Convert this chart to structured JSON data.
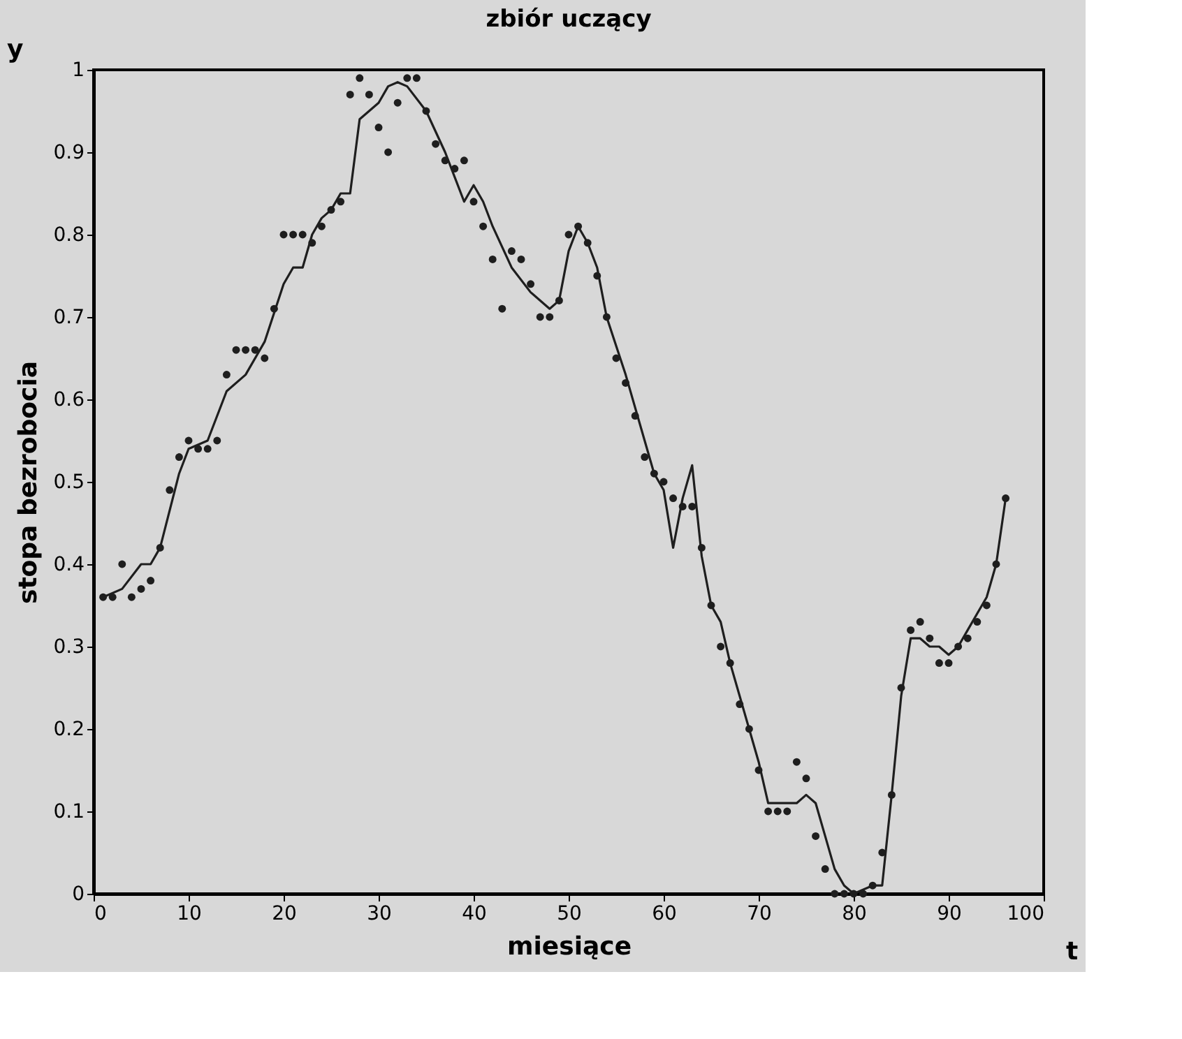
{
  "chart_data": {
    "type": "scatter",
    "title": "zbiór uczący",
    "xlabel": "miesiące",
    "ylabel": "stopa bezrobocia",
    "annotations": [
      "y",
      "t"
    ],
    "xlim": [
      0,
      100
    ],
    "xticks": [
      0,
      10,
      20,
      30,
      40,
      50,
      60,
      70,
      80,
      90,
      100
    ],
    "ylim": [
      0,
      1
    ],
    "yticks": [
      0,
      0.1,
      0.2,
      0.3,
      0.4,
      0.5,
      0.6,
      0.7,
      0.8,
      0.9,
      1
    ],
    "series": [
      {
        "marker": "circle",
        "color": "#1e1e1e",
        "x": [
          1,
          2,
          3,
          4,
          5,
          6,
          7,
          8,
          9,
          10,
          11,
          12,
          13,
          14,
          15,
          16,
          17,
          18,
          19,
          20,
          21,
          22,
          23,
          24,
          25,
          26,
          27,
          28,
          29,
          30,
          31,
          32,
          33,
          34,
          35,
          36,
          37,
          38,
          39,
          40,
          41,
          42,
          43,
          44,
          45,
          46,
          47,
          48,
          49,
          50,
          51,
          52,
          53,
          54,
          55,
          56,
          57,
          58,
          59,
          60,
          61,
          62,
          63,
          64,
          65,
          66,
          67,
          68,
          69,
          70,
          71,
          72,
          73,
          74,
          75,
          76,
          77,
          78,
          79,
          80,
          81,
          82,
          83,
          84,
          85,
          86,
          87,
          88,
          89,
          90,
          91,
          92,
          93,
          94,
          95,
          96
        ],
        "values": [
          0.36,
          0.36,
          0.4,
          0.36,
          0.37,
          0.38,
          0.42,
          0.49,
          0.53,
          0.55,
          0.54,
          0.54,
          0.55,
          0.63,
          0.66,
          0.66,
          0.66,
          0.65,
          0.71,
          0.8,
          0.8,
          0.8,
          0.79,
          0.81,
          0.83,
          0.84,
          0.97,
          0.99,
          0.97,
          0.93,
          0.9,
          0.96,
          0.99,
          0.99,
          0.95,
          0.91,
          0.89,
          0.88,
          0.89,
          0.84,
          0.81,
          0.77,
          0.71,
          0.78,
          0.77,
          0.74,
          0.7,
          0.7,
          0.72,
          0.8,
          0.81,
          0.79,
          0.75,
          0.7,
          0.65,
          0.62,
          0.58,
          0.53,
          0.51,
          0.5,
          0.48,
          0.47,
          0.47,
          0.42,
          0.35,
          0.3,
          0.28,
          0.23,
          0.2,
          0.15,
          0.1,
          0.1,
          0.1,
          0.16,
          0.14,
          0.07,
          0.03,
          0.0,
          0.0,
          0.0,
          0.0,
          0.01,
          0.05,
          0.12,
          0.25,
          0.32,
          0.33,
          0.31,
          0.28,
          0.28,
          0.3,
          0.31,
          0.33,
          0.35,
          0.4,
          0.48
        ]
      },
      {
        "type": "line",
        "marker": "none",
        "line_style": "solid",
        "color": "#1e1e1e",
        "x": [
          1,
          3,
          5,
          6,
          7,
          9,
          10,
          12,
          14,
          16,
          18,
          20,
          21,
          22,
          23,
          24,
          25,
          26,
          27,
          28,
          30,
          31,
          32,
          33,
          35,
          37,
          39,
          40,
          41,
          42,
          44,
          46,
          48,
          49,
          50,
          51,
          52,
          53,
          54,
          56,
          58,
          59,
          60,
          61,
          62,
          63,
          64,
          65,
          66,
          67,
          68,
          69,
          70,
          71,
          72,
          73,
          74,
          75,
          76,
          77,
          78,
          79,
          80,
          82,
          83,
          84,
          85,
          86,
          87,
          88,
          89,
          90,
          91,
          92,
          93,
          94,
          95,
          96
        ],
        "values": [
          0.36,
          0.37,
          0.4,
          0.4,
          0.42,
          0.51,
          0.54,
          0.55,
          0.61,
          0.63,
          0.67,
          0.74,
          0.76,
          0.76,
          0.8,
          0.82,
          0.83,
          0.85,
          0.85,
          0.94,
          0.96,
          0.98,
          0.985,
          0.98,
          0.95,
          0.9,
          0.84,
          0.86,
          0.84,
          0.81,
          0.76,
          0.73,
          0.71,
          0.72,
          0.78,
          0.81,
          0.79,
          0.76,
          0.7,
          0.63,
          0.55,
          0.51,
          0.49,
          0.42,
          0.48,
          0.52,
          0.41,
          0.35,
          0.33,
          0.28,
          0.24,
          0.2,
          0.16,
          0.11,
          0.11,
          0.11,
          0.11,
          0.12,
          0.11,
          0.07,
          0.03,
          0.01,
          0.0,
          0.01,
          0.01,
          0.12,
          0.24,
          0.31,
          0.31,
          0.3,
          0.3,
          0.29,
          0.3,
          0.32,
          0.34,
          0.36,
          0.4,
          0.48
        ]
      }
    ]
  }
}
